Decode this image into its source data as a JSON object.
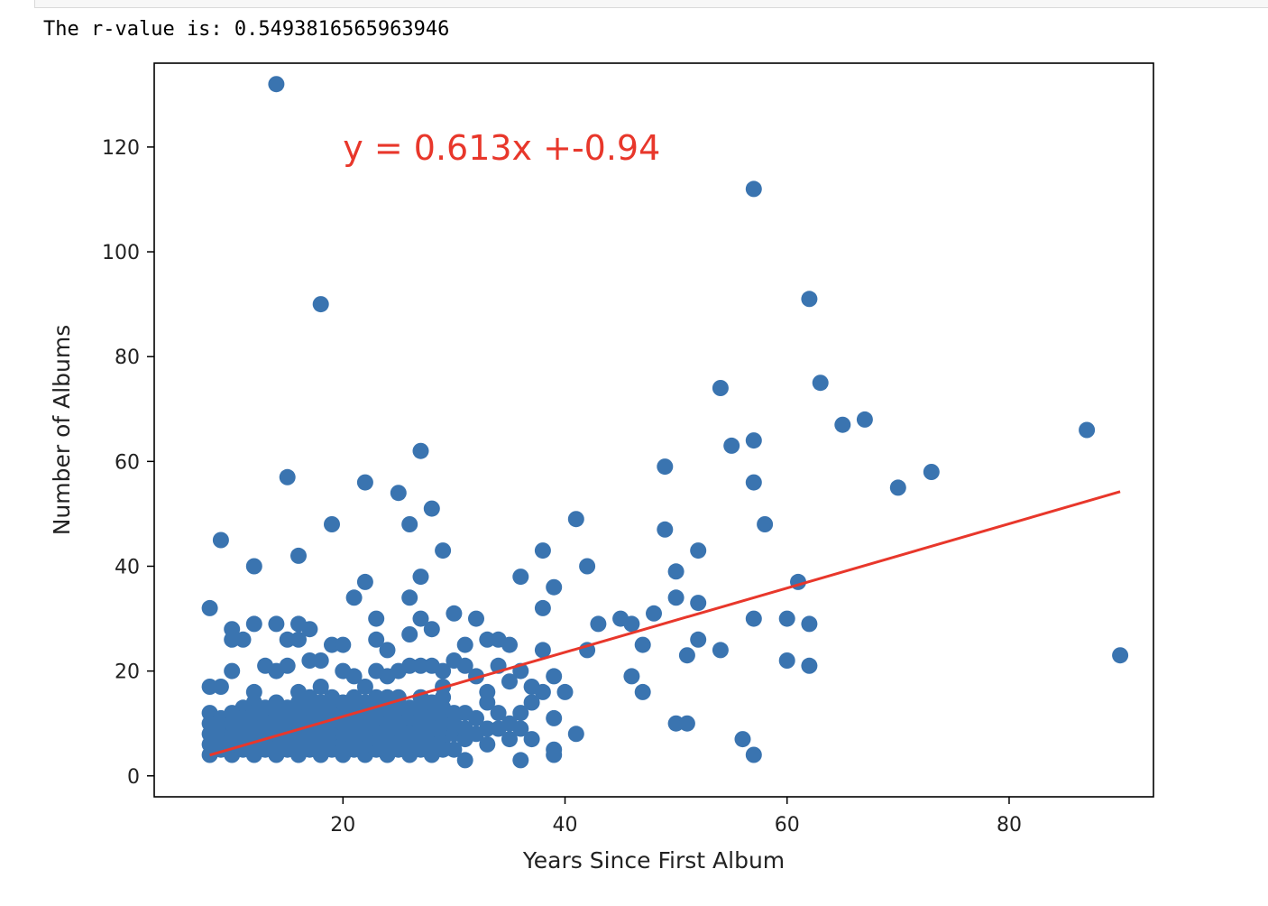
{
  "output": {
    "rvalue_text": "The r-value is: 0.5493816565963946"
  },
  "colors": {
    "points": "#3a74b0",
    "regression_line": "#e8372b",
    "annotation": "#e8372b"
  },
  "chart_data": {
    "type": "scatter",
    "title": "",
    "xlabel": "Years Since First Album",
    "ylabel": "Number of Albums",
    "xlim": [
      3,
      93
    ],
    "ylim": [
      -4,
      136
    ],
    "xticks": [
      20,
      40,
      60,
      80
    ],
    "yticks": [
      0,
      20,
      40,
      60,
      80,
      100,
      120
    ],
    "grid": false,
    "annotation": "y = 0.613x +-0.94",
    "regression": {
      "slope": 0.613,
      "intercept": -0.94,
      "x_range": [
        8,
        90
      ]
    },
    "series": [
      {
        "points": [
          [
            14,
            132
          ],
          [
            57,
            112
          ],
          [
            18,
            90
          ],
          [
            62,
            91
          ],
          [
            54,
            74
          ],
          [
            63,
            75
          ],
          [
            65,
            67
          ],
          [
            67,
            68
          ],
          [
            87,
            66
          ],
          [
            27,
            62
          ],
          [
            55,
            63
          ],
          [
            57,
            64
          ],
          [
            49,
            59
          ],
          [
            73,
            58
          ],
          [
            15,
            57
          ],
          [
            22,
            56
          ],
          [
            57,
            56
          ],
          [
            70,
            55
          ],
          [
            25,
            54
          ],
          [
            28,
            51
          ],
          [
            41,
            49
          ],
          [
            19,
            48
          ],
          [
            26,
            48
          ],
          [
            58,
            48
          ],
          [
            49,
            47
          ],
          [
            9,
            45
          ],
          [
            29,
            43
          ],
          [
            16,
            42
          ],
          [
            38,
            43
          ],
          [
            52,
            43
          ],
          [
            12,
            40
          ],
          [
            42,
            40
          ],
          [
            50,
            39
          ],
          [
            36,
            38
          ],
          [
            27,
            38
          ],
          [
            61,
            37
          ],
          [
            22,
            37
          ],
          [
            39,
            36
          ],
          [
            21,
            34
          ],
          [
            26,
            34
          ],
          [
            50,
            34
          ],
          [
            8,
            32
          ],
          [
            38,
            32
          ],
          [
            52,
            33
          ],
          [
            48,
            31
          ],
          [
            30,
            31
          ],
          [
            32,
            30
          ],
          [
            45,
            30
          ],
          [
            57,
            30
          ],
          [
            60,
            30
          ],
          [
            46,
            29
          ],
          [
            62,
            29
          ],
          [
            43,
            29
          ],
          [
            23,
            30
          ],
          [
            12,
            29
          ],
          [
            14,
            29
          ],
          [
            16,
            29
          ],
          [
            17,
            28
          ],
          [
            10,
            28
          ],
          [
            26,
            27
          ],
          [
            27,
            30
          ],
          [
            28,
            28
          ],
          [
            33,
            26
          ],
          [
            34,
            26
          ],
          [
            47,
            25
          ],
          [
            52,
            26
          ],
          [
            16,
            26
          ],
          [
            19,
            25
          ],
          [
            20,
            25
          ],
          [
            31,
            25
          ],
          [
            35,
            25
          ],
          [
            10,
            26
          ],
          [
            11,
            26
          ],
          [
            15,
            26
          ],
          [
            23,
            26
          ],
          [
            42,
            24
          ],
          [
            38,
            24
          ],
          [
            54,
            24
          ],
          [
            24,
            24
          ],
          [
            51,
            23
          ],
          [
            90,
            23
          ],
          [
            60,
            22
          ],
          [
            62,
            21
          ],
          [
            17,
            22
          ],
          [
            18,
            22
          ],
          [
            13,
            21
          ],
          [
            14,
            20
          ],
          [
            15,
            21
          ],
          [
            23,
            20
          ],
          [
            25,
            20
          ],
          [
            26,
            21
          ],
          [
            27,
            21
          ],
          [
            28,
            21
          ],
          [
            29,
            20
          ],
          [
            30,
            22
          ],
          [
            31,
            21
          ],
          [
            34,
            21
          ],
          [
            36,
            20
          ],
          [
            39,
            19
          ],
          [
            46,
            19
          ],
          [
            10,
            20
          ],
          [
            20,
            20
          ],
          [
            21,
            19
          ],
          [
            24,
            19
          ],
          [
            32,
            19
          ],
          [
            35,
            18
          ],
          [
            37,
            17
          ],
          [
            9,
            17
          ],
          [
            8,
            17
          ],
          [
            12,
            16
          ],
          [
            16,
            16
          ],
          [
            18,
            17
          ],
          [
            22,
            17
          ],
          [
            29,
            17
          ],
          [
            33,
            16
          ],
          [
            38,
            16
          ],
          [
            40,
            16
          ],
          [
            47,
            16
          ],
          [
            33,
            14
          ],
          [
            37,
            14
          ],
          [
            36,
            12
          ],
          [
            34,
            12
          ],
          [
            39,
            11
          ],
          [
            31,
            12
          ],
          [
            29,
            13
          ],
          [
            32,
            11
          ],
          [
            41,
            8
          ],
          [
            56,
            7
          ],
          [
            57,
            4
          ],
          [
            50,
            10
          ],
          [
            51,
            10
          ],
          [
            36,
            3
          ],
          [
            39,
            5
          ],
          [
            39,
            4
          ],
          [
            31,
            3
          ],
          [
            30,
            5
          ],
          [
            33,
            6
          ],
          [
            35,
            7
          ],
          [
            37,
            7
          ],
          [
            29,
            7
          ],
          [
            28,
            8
          ],
          [
            26,
            9
          ],
          [
            24,
            11
          ],
          [
            22,
            12
          ],
          [
            20,
            13
          ],
          [
            18,
            14
          ],
          [
            17,
            15
          ],
          [
            14,
            14
          ],
          [
            12,
            14
          ],
          [
            11,
            13
          ],
          [
            10,
            12
          ],
          [
            9,
            11
          ],
          [
            8,
            12
          ],
          [
            8,
            10
          ],
          [
            8,
            8
          ],
          [
            8,
            6
          ],
          [
            8,
            4
          ],
          [
            9,
            5
          ],
          [
            9,
            7
          ],
          [
            9,
            9
          ],
          [
            10,
            4
          ],
          [
            10,
            6
          ],
          [
            10,
            8
          ],
          [
            10,
            10
          ],
          [
            11,
            5
          ],
          [
            11,
            7
          ],
          [
            11,
            9
          ],
          [
            11,
            11
          ],
          [
            12,
            4
          ],
          [
            12,
            6
          ],
          [
            12,
            8
          ],
          [
            12,
            10
          ],
          [
            12,
            12
          ],
          [
            13,
            5
          ],
          [
            13,
            7
          ],
          [
            13,
            9
          ],
          [
            13,
            11
          ],
          [
            13,
            13
          ],
          [
            14,
            4
          ],
          [
            14,
            6
          ],
          [
            14,
            8
          ],
          [
            14,
            10
          ],
          [
            14,
            12
          ],
          [
            15,
            5
          ],
          [
            15,
            7
          ],
          [
            15,
            9
          ],
          [
            15,
            11
          ],
          [
            15,
            13
          ],
          [
            16,
            4
          ],
          [
            16,
            6
          ],
          [
            16,
            8
          ],
          [
            16,
            10
          ],
          [
            16,
            12
          ],
          [
            16,
            14
          ],
          [
            17,
            5
          ],
          [
            17,
            7
          ],
          [
            17,
            9
          ],
          [
            17,
            11
          ],
          [
            17,
            13
          ],
          [
            18,
            4
          ],
          [
            18,
            6
          ],
          [
            18,
            8
          ],
          [
            18,
            10
          ],
          [
            18,
            12
          ],
          [
            19,
            5
          ],
          [
            19,
            7
          ],
          [
            19,
            9
          ],
          [
            19,
            11
          ],
          [
            19,
            13
          ],
          [
            19,
            15
          ],
          [
            20,
            4
          ],
          [
            20,
            6
          ],
          [
            20,
            8
          ],
          [
            20,
            10
          ],
          [
            20,
            12
          ],
          [
            20,
            14
          ],
          [
            21,
            5
          ],
          [
            21,
            7
          ],
          [
            21,
            9
          ],
          [
            21,
            11
          ],
          [
            21,
            13
          ],
          [
            21,
            15
          ],
          [
            22,
            4
          ],
          [
            22,
            6
          ],
          [
            22,
            8
          ],
          [
            22,
            10
          ],
          [
            22,
            14
          ],
          [
            23,
            5
          ],
          [
            23,
            7
          ],
          [
            23,
            9
          ],
          [
            23,
            11
          ],
          [
            23,
            13
          ],
          [
            23,
            15
          ],
          [
            24,
            4
          ],
          [
            24,
            6
          ],
          [
            24,
            8
          ],
          [
            24,
            10
          ],
          [
            24,
            13
          ],
          [
            24,
            15
          ],
          [
            25,
            5
          ],
          [
            25,
            7
          ],
          [
            25,
            9
          ],
          [
            25,
            11
          ],
          [
            25,
            13
          ],
          [
            25,
            15
          ],
          [
            26,
            4
          ],
          [
            26,
            6
          ],
          [
            26,
            8
          ],
          [
            26,
            11
          ],
          [
            26,
            13
          ],
          [
            27,
            5
          ],
          [
            27,
            7
          ],
          [
            27,
            9
          ],
          [
            27,
            11
          ],
          [
            27,
            13
          ],
          [
            27,
            15
          ],
          [
            28,
            4
          ],
          [
            28,
            6
          ],
          [
            28,
            10
          ],
          [
            28,
            12
          ],
          [
            28,
            14
          ],
          [
            29,
            5
          ],
          [
            29,
            9
          ],
          [
            29,
            11
          ],
          [
            29,
            15
          ],
          [
            30,
            8
          ],
          [
            30,
            10
          ],
          [
            30,
            12
          ],
          [
            31,
            7
          ],
          [
            31,
            9
          ],
          [
            32,
            8
          ],
          [
            33,
            9
          ],
          [
            34,
            9
          ],
          [
            35,
            10
          ],
          [
            36,
            9
          ]
        ]
      }
    ]
  }
}
